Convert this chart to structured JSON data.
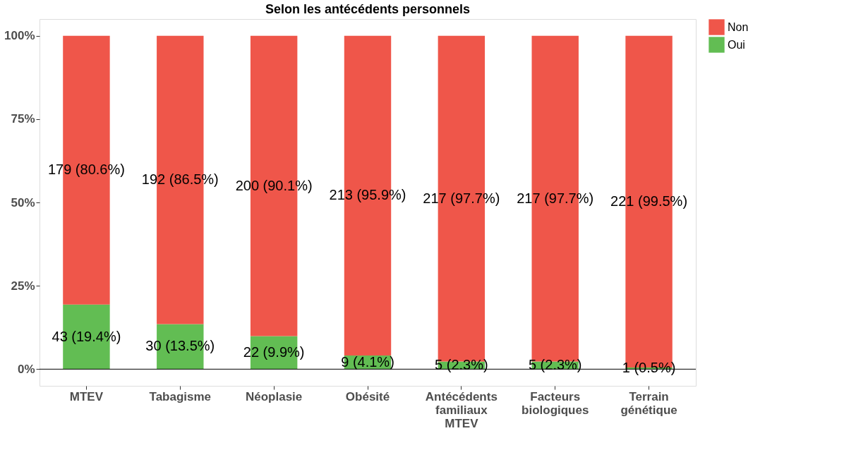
{
  "chart_data": {
    "type": "bar",
    "title": "Selon les antécédents personnels",
    "categories": [
      "MTEV",
      "Tabagisme",
      "Néoplasie",
      "Obésité",
      "Antécédents familiaux MTEV",
      "Facteurs biologiques",
      "Terrain génétique"
    ],
    "stacked": true,
    "series": [
      {
        "name": "Oui",
        "color": "#62bd53",
        "values": [
          19.4,
          13.5,
          9.9,
          4.1,
          2.3,
          2.3,
          0.5
        ],
        "value_labels": [
          "43 (19.4%)",
          "30 (13.5%)",
          "22 (9.9%)",
          "9 (4.1%)",
          "5 (2.3%)",
          "5 (2.3%)",
          "1 (0.5%)"
        ]
      },
      {
        "name": "Non",
        "color": "#ef564a",
        "values": [
          80.6,
          86.5,
          90.1,
          95.9,
          97.7,
          97.7,
          99.5
        ],
        "value_labels": [
          "179 (80.6%)",
          "192 (86.5%)",
          "200 (90.1%)",
          "213 (95.9%)",
          "217 (97.7%)",
          "217 (97.7%)",
          "221 (99.5%)"
        ]
      }
    ],
    "ylim": [
      -5,
      105
    ],
    "yticks": [
      {
        "value": 0,
        "label": "0%"
      },
      {
        "value": 25,
        "label": "25%"
      },
      {
        "value": 50,
        "label": "50%"
      },
      {
        "value": 75,
        "label": "75%"
      },
      {
        "value": 100,
        "label": "100%"
      }
    ],
    "ref_lines": [
      {
        "axis": "y",
        "value": 0,
        "color": "#000000"
      }
    ],
    "grid": false,
    "legend": "right"
  }
}
